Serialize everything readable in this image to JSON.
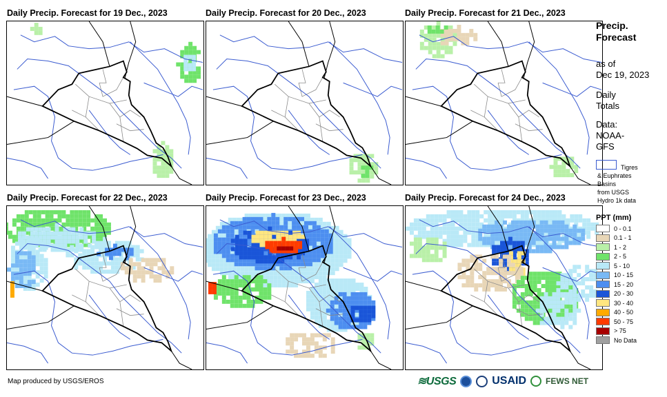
{
  "panels": [
    {
      "title": "Daily Precip. Forecast for 19 Dec., 2023"
    },
    {
      "title": "Daily Precip. Forecast for 20 Dec., 2023"
    },
    {
      "title": "Daily Precip. Forecast for 21 Dec., 2023"
    },
    {
      "title": "Daily Precip. Forecast for 22 Dec., 2023"
    },
    {
      "title": "Daily Precip. Forecast for 23 Dec., 2023"
    },
    {
      "title": "Daily Precip. Forecast for 24 Dec., 2023"
    }
  ],
  "sidebar": {
    "title_line1": "Precip.",
    "title_line2": "Forecast",
    "asof_line1": "as of",
    "asof_line2": "Dec 19, 2023",
    "daily_line1": "Daily",
    "daily_line2": "Totals",
    "data_line1": "Data:",
    "data_line2": "NOAA-",
    "data_line3": "GFS",
    "basin_line1": "Tigres",
    "basin_line2": "& Euphrates",
    "basin_line3": "Basins",
    "basin_line4": "from USGS",
    "basin_line5": "Hydro 1k data"
  },
  "legend": {
    "title": "PPT (mm)",
    "items": [
      {
        "label": "0 - 0.1",
        "color": "#ffffff"
      },
      {
        "label": "0.1 - 1",
        "color": "#e8d6b7"
      },
      {
        "label": "1 - 2",
        "color": "#b9f0a8"
      },
      {
        "label": "2 - 5",
        "color": "#6fe36a"
      },
      {
        "label": "5 - 10",
        "color": "#b9e9f7"
      },
      {
        "label": "10 - 15",
        "color": "#79b9f5"
      },
      {
        "label": "15 - 20",
        "color": "#4d8ef0"
      },
      {
        "label": "20 - 30",
        "color": "#1a55d8"
      },
      {
        "label": "30 - 40",
        "color": "#ffe680"
      },
      {
        "label": "40 - 50",
        "color": "#ffaa00"
      },
      {
        "label": "50 - 75",
        "color": "#ff3b00"
      },
      {
        "label": "> 75",
        "color": "#a80000"
      },
      {
        "label": "No Data",
        "color": "#a0a0a0"
      }
    ]
  },
  "footer": {
    "credit": "Map produced by USGS/EROS",
    "logo_usgs": "≋USGS",
    "logo_usaid": "USAID",
    "logo_fews": "FEWS NET"
  },
  "basin_outline_color": "#3a5bd0"
}
